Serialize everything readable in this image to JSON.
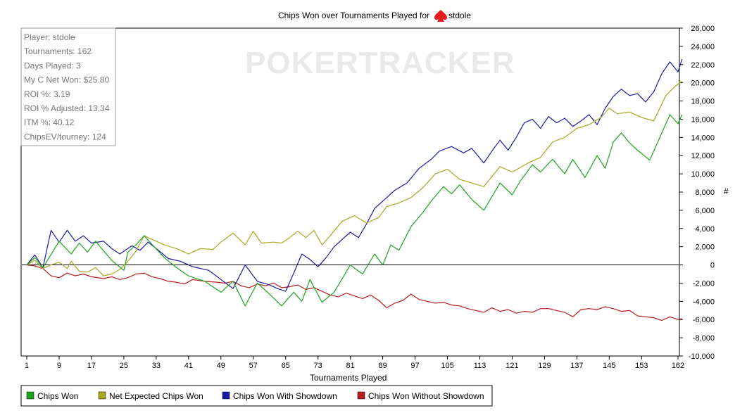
{
  "chart_data": {
    "type": "line",
    "title": "Chips Won over Tournaments Played for",
    "title_player": "stdole",
    "xlabel": "Tournaments Played",
    "ylabel": "#",
    "watermark": "POKERTRACKER",
    "xlim": [
      1,
      162
    ],
    "ylim": [
      -10000,
      26000
    ],
    "x_ticks": [
      1,
      9,
      17,
      25,
      33,
      41,
      49,
      57,
      65,
      73,
      81,
      89,
      97,
      105,
      113,
      121,
      129,
      137,
      145,
      153,
      162
    ],
    "y_ticks": [
      {
        "value": 26000,
        "label": "26,000"
      },
      {
        "value": 24000,
        "label": "24,000"
      },
      {
        "value": 22000,
        "label": "22,000"
      },
      {
        "value": 20000,
        "label": "20,000"
      },
      {
        "value": 18000,
        "label": "18,000"
      },
      {
        "value": 16000,
        "label": "16,000"
      },
      {
        "value": 14000,
        "label": "14,000"
      },
      {
        "value": 12000,
        "label": "12,000"
      },
      {
        "value": 10000,
        "label": "10,000"
      },
      {
        "value": 8000,
        "label": "8,000"
      },
      {
        "value": 6000,
        "label": "6,000"
      },
      {
        "value": 4000,
        "label": "4,000"
      },
      {
        "value": 2000,
        "label": "2,000"
      },
      {
        "value": 0,
        "label": "0"
      },
      {
        "value": -2000,
        "label": "-2,000"
      },
      {
        "value": -4000,
        "label": "-4,000"
      },
      {
        "value": -6000,
        "label": "-6,000"
      },
      {
        "value": -8000,
        "label": "-8,000"
      },
      {
        "value": -10000,
        "label": "-10,000"
      }
    ],
    "grid": false,
    "legend_position": "bottom-left",
    "info_box": [
      "Player: stdole",
      "Tournaments: 162",
      "Days Played: 3",
      "My C Net Won: $25.80",
      "ROI %: 3.19",
      "ROI % Adjusted: 13.34",
      "ITM %: 40.12",
      "ChipsEV/tourney: 124"
    ],
    "series": [
      {
        "name": "Chips Won",
        "color": "#1ea31e",
        "points": [
          [
            1,
            0
          ],
          [
            3,
            800
          ],
          [
            5,
            -300
          ],
          [
            9,
            2600
          ],
          [
            12,
            1200
          ],
          [
            14,
            2400
          ],
          [
            16,
            1400
          ],
          [
            18,
            2600
          ],
          [
            22,
            500
          ],
          [
            25,
            -600
          ],
          [
            26,
            1400
          ],
          [
            28,
            2200
          ],
          [
            30,
            3200
          ],
          [
            35,
            800
          ],
          [
            38,
            -300
          ],
          [
            41,
            -1200
          ],
          [
            45,
            -1800
          ],
          [
            49,
            -3000
          ],
          [
            52,
            -1800
          ],
          [
            55,
            -4500
          ],
          [
            58,
            -2000
          ],
          [
            61,
            -3200
          ],
          [
            64,
            -4500
          ],
          [
            67,
            -3000
          ],
          [
            69,
            -4000
          ],
          [
            71,
            -1600
          ],
          [
            74,
            -4100
          ],
          [
            77,
            -3000
          ],
          [
            81,
            0
          ],
          [
            84,
            -1000
          ],
          [
            87,
            1200
          ],
          [
            89,
            0
          ],
          [
            91,
            2200
          ],
          [
            93,
            1600
          ],
          [
            96,
            4200
          ],
          [
            99,
            5800
          ],
          [
            101,
            7000
          ],
          [
            104,
            8600
          ],
          [
            106,
            7800
          ],
          [
            108,
            8800
          ],
          [
            111,
            7200
          ],
          [
            114,
            6000
          ],
          [
            118,
            9000
          ],
          [
            121,
            7700
          ],
          [
            123,
            9200
          ],
          [
            126,
            11000
          ],
          [
            128,
            10200
          ],
          [
            131,
            11600
          ],
          [
            134,
            10000
          ],
          [
            136,
            11600
          ],
          [
            139,
            9600
          ],
          [
            142,
            12000
          ],
          [
            144,
            10600
          ],
          [
            146,
            13500
          ],
          [
            148,
            14500
          ],
          [
            150,
            13400
          ],
          [
            152,
            12600
          ],
          [
            155,
            11500
          ],
          [
            160,
            16500
          ],
          [
            162,
            15500
          ],
          [
            163,
            16500
          ]
        ]
      },
      {
        "name": "Net Expected Chips Won",
        "color": "#a8a820",
        "points": [
          [
            1,
            0
          ],
          [
            3,
            500
          ],
          [
            5,
            -400
          ],
          [
            7,
            0
          ],
          [
            9,
            300
          ],
          [
            11,
            -400
          ],
          [
            12,
            400
          ],
          [
            14,
            -700
          ],
          [
            16,
            -800
          ],
          [
            18,
            -300
          ],
          [
            20,
            -1200
          ],
          [
            22,
            -1000
          ],
          [
            24,
            -500
          ],
          [
            26,
            400
          ],
          [
            28,
            1500
          ],
          [
            30,
            3200
          ],
          [
            32,
            2800
          ],
          [
            35,
            2200
          ],
          [
            38,
            1800
          ],
          [
            41,
            1200
          ],
          [
            44,
            1800
          ],
          [
            47,
            1700
          ],
          [
            49,
            2500
          ],
          [
            52,
            3500
          ],
          [
            55,
            2200
          ],
          [
            57,
            3700
          ],
          [
            59,
            2400
          ],
          [
            62,
            2500
          ],
          [
            64,
            2400
          ],
          [
            66,
            3000
          ],
          [
            68,
            3700
          ],
          [
            70,
            3000
          ],
          [
            72,
            3800
          ],
          [
            74,
            2200
          ],
          [
            76,
            3200
          ],
          [
            79,
            4800
          ],
          [
            82,
            5400
          ],
          [
            85,
            4600
          ],
          [
            88,
            5200
          ],
          [
            90,
            6400
          ],
          [
            93,
            6800
          ],
          [
            96,
            7400
          ],
          [
            99,
            8500
          ],
          [
            102,
            10000
          ],
          [
            105,
            10500
          ],
          [
            108,
            9400
          ],
          [
            111,
            9000
          ],
          [
            114,
            8600
          ],
          [
            118,
            10800
          ],
          [
            121,
            10200
          ],
          [
            125,
            11200
          ],
          [
            128,
            11800
          ],
          [
            131,
            13500
          ],
          [
            134,
            14000
          ],
          [
            137,
            15000
          ],
          [
            140,
            15400
          ],
          [
            143,
            16200
          ],
          [
            145,
            17200
          ],
          [
            147,
            16600
          ],
          [
            150,
            16800
          ],
          [
            153,
            16200
          ],
          [
            156,
            15800
          ],
          [
            159,
            18600
          ],
          [
            161,
            19500
          ],
          [
            163,
            20200
          ]
        ]
      },
      {
        "name": "Chips Won With Showdown",
        "color": "#1a1aa3",
        "points": [
          [
            1,
            0
          ],
          [
            3,
            1100
          ],
          [
            5,
            -300
          ],
          [
            7,
            3800
          ],
          [
            9,
            2500
          ],
          [
            11,
            3800
          ],
          [
            13,
            2600
          ],
          [
            15,
            3200
          ],
          [
            17,
            2400
          ],
          [
            20,
            2600
          ],
          [
            22,
            1800
          ],
          [
            24,
            1200
          ],
          [
            27,
            2100
          ],
          [
            29,
            1600
          ],
          [
            31,
            2500
          ],
          [
            33,
            1800
          ],
          [
            36,
            700
          ],
          [
            39,
            400
          ],
          [
            42,
            -200
          ],
          [
            46,
            -600
          ],
          [
            49,
            -1600
          ],
          [
            52,
            -2600
          ],
          [
            55,
            0
          ],
          [
            58,
            -1800
          ],
          [
            61,
            -2200
          ],
          [
            63,
            -2600
          ],
          [
            65,
            -2900
          ],
          [
            67,
            -900
          ],
          [
            69,
            1200
          ],
          [
            71,
            600
          ],
          [
            73,
            -200
          ],
          [
            75,
            800
          ],
          [
            77,
            2000
          ],
          [
            79,
            2800
          ],
          [
            81,
            3600
          ],
          [
            83,
            3000
          ],
          [
            85,
            4500
          ],
          [
            87,
            6200
          ],
          [
            89,
            7000
          ],
          [
            92,
            8200
          ],
          [
            95,
            9000
          ],
          [
            98,
            10600
          ],
          [
            101,
            11600
          ],
          [
            103,
            12500
          ],
          [
            106,
            13000
          ],
          [
            109,
            12300
          ],
          [
            111,
            12800
          ],
          [
            114,
            11200
          ],
          [
            116,
            12500
          ],
          [
            118,
            13700
          ],
          [
            120,
            12600
          ],
          [
            122,
            14000
          ],
          [
            124,
            15600
          ],
          [
            126,
            16000
          ],
          [
            128,
            15000
          ],
          [
            130,
            16300
          ],
          [
            132,
            15600
          ],
          [
            134,
            16100
          ],
          [
            136,
            15200
          ],
          [
            138,
            15800
          ],
          [
            140,
            16500
          ],
          [
            142,
            15400
          ],
          [
            144,
            17200
          ],
          [
            146,
            18500
          ],
          [
            148,
            19300
          ],
          [
            150,
            18600
          ],
          [
            152,
            18800
          ],
          [
            154,
            17900
          ],
          [
            156,
            19000
          ],
          [
            158,
            21000
          ],
          [
            160,
            22300
          ],
          [
            162,
            21200
          ],
          [
            163,
            22600
          ]
        ]
      },
      {
        "name": "Chips Won Without Showdown",
        "color": "#b81c1c",
        "points": [
          [
            1,
            0
          ],
          [
            3,
            -100
          ],
          [
            5,
            -400
          ],
          [
            7,
            -1200
          ],
          [
            9,
            -1400
          ],
          [
            11,
            -900
          ],
          [
            13,
            -1200
          ],
          [
            15,
            -1000
          ],
          [
            17,
            -1300
          ],
          [
            20,
            -1500
          ],
          [
            22,
            -1300
          ],
          [
            24,
            -1600
          ],
          [
            26,
            -1400
          ],
          [
            28,
            -1000
          ],
          [
            30,
            -900
          ],
          [
            32,
            -1300
          ],
          [
            34,
            -1500
          ],
          [
            36,
            -1800
          ],
          [
            38,
            -1900
          ],
          [
            40,
            -2100
          ],
          [
            42,
            -1600
          ],
          [
            45,
            -1800
          ],
          [
            48,
            -1900
          ],
          [
            50,
            -2000
          ],
          [
            52,
            -1800
          ],
          [
            54,
            -2300
          ],
          [
            56,
            -2500
          ],
          [
            58,
            -2100
          ],
          [
            60,
            -2300
          ],
          [
            62,
            -2000
          ],
          [
            64,
            -2500
          ],
          [
            66,
            -2400
          ],
          [
            68,
            -2200
          ],
          [
            70,
            -2700
          ],
          [
            72,
            -2500
          ],
          [
            74,
            -2900
          ],
          [
            76,
            -3300
          ],
          [
            78,
            -3500
          ],
          [
            80,
            -3100
          ],
          [
            82,
            -3400
          ],
          [
            84,
            -3700
          ],
          [
            86,
            -3300
          ],
          [
            88,
            -3900
          ],
          [
            90,
            -4700
          ],
          [
            92,
            -4200
          ],
          [
            94,
            -3900
          ],
          [
            96,
            -3200
          ],
          [
            98,
            -3800
          ],
          [
            100,
            -4000
          ],
          [
            102,
            -4200
          ],
          [
            104,
            -4100
          ],
          [
            106,
            -4400
          ],
          [
            108,
            -4500
          ],
          [
            110,
            -4800
          ],
          [
            112,
            -5000
          ],
          [
            114,
            -5200
          ],
          [
            116,
            -4700
          ],
          [
            118,
            -5100
          ],
          [
            120,
            -4900
          ],
          [
            122,
            -5300
          ],
          [
            124,
            -5100
          ],
          [
            126,
            -5200
          ],
          [
            128,
            -4800
          ],
          [
            130,
            -4800
          ],
          [
            132,
            -5000
          ],
          [
            134,
            -5200
          ],
          [
            136,
            -5700
          ],
          [
            138,
            -4900
          ],
          [
            140,
            -4800
          ],
          [
            142,
            -4900
          ],
          [
            144,
            -4600
          ],
          [
            146,
            -4800
          ],
          [
            148,
            -5100
          ],
          [
            150,
            -5000
          ],
          [
            152,
            -5600
          ],
          [
            154,
            -5700
          ],
          [
            156,
            -5800
          ],
          [
            158,
            -6100
          ],
          [
            160,
            -5700
          ],
          [
            162,
            -6000
          ],
          [
            163,
            -5900
          ]
        ]
      }
    ]
  }
}
